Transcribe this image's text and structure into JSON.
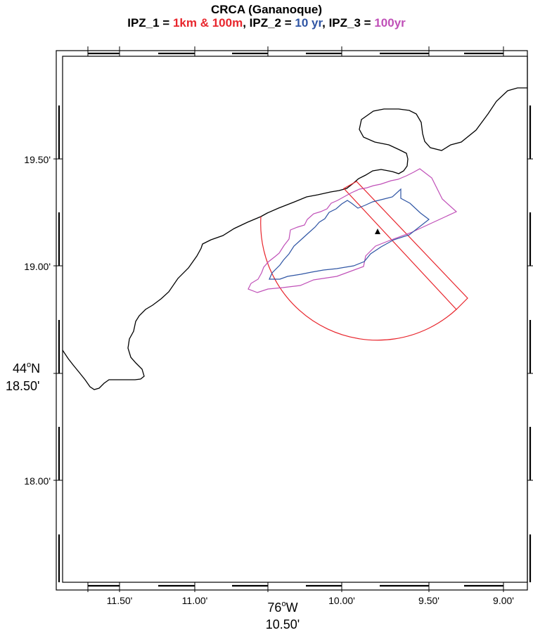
{
  "title": {
    "line1": "CRCA (Gananoque)",
    "ipz1_label": "IPZ_1 = ",
    "ipz1_value": "1km & 100m",
    "ipz2_label": ", IPZ_2 = ",
    "ipz2_value": "10 yr",
    "ipz3_label": ", IPZ_3 = ",
    "ipz3_value": "100yr"
  },
  "colors": {
    "ipz1": "#e8262d",
    "ipz2": "#2f55a4",
    "ipz3": "#c050b8",
    "shoreline": "#000000"
  },
  "axes": {
    "y_ticks": [
      "19.50'",
      "19.00'",
      "18.00'"
    ],
    "y_center_deg": "44",
    "y_center_deg_suffix": "N",
    "y_center_min": "18.50'",
    "x_ticks": [
      "11.50'",
      "11.00'",
      "10.00'",
      "9.50'",
      "9.00'"
    ],
    "x_center_deg": "76",
    "x_center_deg_suffix": "W",
    "x_center_min": "10.50'",
    "degree_symbol": "o"
  }
}
